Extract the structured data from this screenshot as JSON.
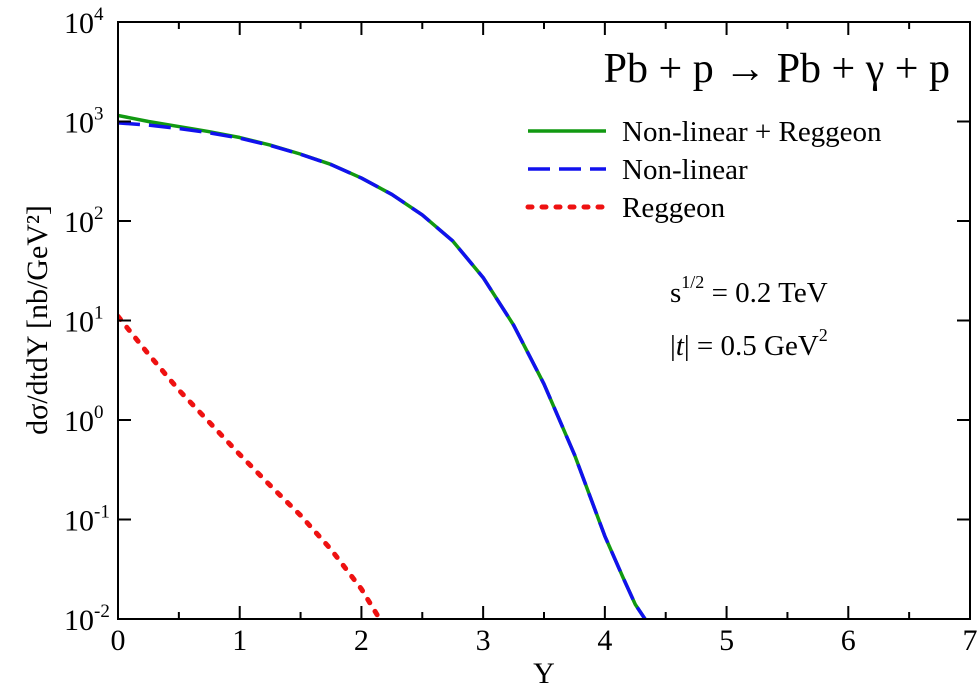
{
  "chart_data": {
    "type": "line",
    "title": "Pb + p → Pb + γ + p",
    "xlabel": "Y",
    "ylabel": "dσ/dtdY [nb/GeV²]",
    "xlim": [
      0,
      7
    ],
    "ylim": [
      0.01,
      10000
    ],
    "yscale": "log",
    "grid": false,
    "legend_position": "top-right",
    "x_ticks": [
      "0",
      "1",
      "2",
      "3",
      "4",
      "5",
      "6",
      "7"
    ],
    "y_ticks": [
      {
        "base": "10",
        "exp": "4"
      },
      {
        "base": "10",
        "exp": "3"
      },
      {
        "base": "10",
        "exp": "2"
      },
      {
        "base": "10",
        "exp": "1"
      },
      {
        "base": "10",
        "exp": "0"
      },
      {
        "base": "10",
        "exp": "-1"
      },
      {
        "base": "10",
        "exp": "-2"
      }
    ],
    "annotations": {
      "energy_base": "s",
      "energy_exp": "1/2",
      "energy_value": " = 0.2 TeV",
      "t_pre": "|",
      "t_var": "t",
      "t_mid": "| = 0.5 GeV",
      "t_exp": "2"
    },
    "series": [
      {
        "name": "Non-linear + Reggeon",
        "color": "#119911",
        "style": "solid",
        "x": [
          0,
          0.25,
          0.5,
          0.75,
          1.0,
          1.25,
          1.5,
          1.75,
          2.0,
          2.25,
          2.5,
          2.75,
          3.0,
          3.25,
          3.5,
          3.75,
          4.0,
          4.15,
          4.25,
          4.33
        ],
        "y": [
          1150,
          1000,
          890,
          790,
          690,
          580,
          470,
          370,
          270,
          185,
          115,
          63,
          27,
          9,
          2.3,
          0.45,
          0.068,
          0.026,
          0.014,
          0.01
        ]
      },
      {
        "name": "Non-linear",
        "color": "#1111ee",
        "style": "dashed",
        "x": [
          0,
          0.25,
          0.5,
          0.75,
          1.0,
          1.25,
          1.5,
          1.75,
          2.0,
          2.25,
          2.5,
          2.75,
          3.0,
          3.25,
          3.5,
          3.75,
          4.0,
          4.15,
          4.25,
          4.33
        ],
        "y": [
          970,
          920,
          850,
          770,
          680,
          575,
          468,
          369,
          270,
          185,
          115,
          63,
          27,
          9,
          2.3,
          0.45,
          0.068,
          0.026,
          0.014,
          0.01
        ]
      },
      {
        "name": "Reggeon",
        "color": "#ee1111",
        "style": "dotted",
        "x": [
          0,
          0.25,
          0.5,
          0.75,
          1.0,
          1.25,
          1.5,
          1.75,
          2.0,
          2.15
        ],
        "y": [
          11,
          4.6,
          2.0,
          0.95,
          0.45,
          0.22,
          0.11,
          0.05,
          0.02,
          0.01
        ]
      }
    ]
  }
}
